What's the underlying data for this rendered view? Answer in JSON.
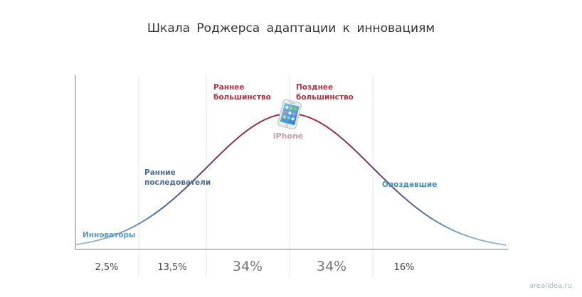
{
  "title": "Шкала Роджерса адаптации к инновациям",
  "segments": [
    {
      "label_lines": [
        "Инноваторы"
      ],
      "percent": "2,5%",
      "color": "#5b9bc6"
    },
    {
      "label_lines": [
        "Ранние",
        "последователи"
      ],
      "percent": "13,5%",
      "color": "#4a6b93"
    },
    {
      "label_lines": [
        "Раннее",
        "большинство"
      ],
      "percent": "34%",
      "color": "#b3333f"
    },
    {
      "label_lines": [
        "Позднее",
        "большинство"
      ],
      "percent": "34%",
      "color": "#b3333f"
    },
    {
      "label_lines": [
        "Опоздавшие"
      ],
      "percent": "16%",
      "color": "#3f8fc2"
    }
  ],
  "product": {
    "label": "iPhone",
    "icon": "iphone-icon"
  },
  "colors": {
    "curve_tail": "#9dc0dd",
    "curve_mid": "#4f6f9a",
    "curve_peak": "#a32a3b"
  },
  "watermark": "arealidea.ru"
}
